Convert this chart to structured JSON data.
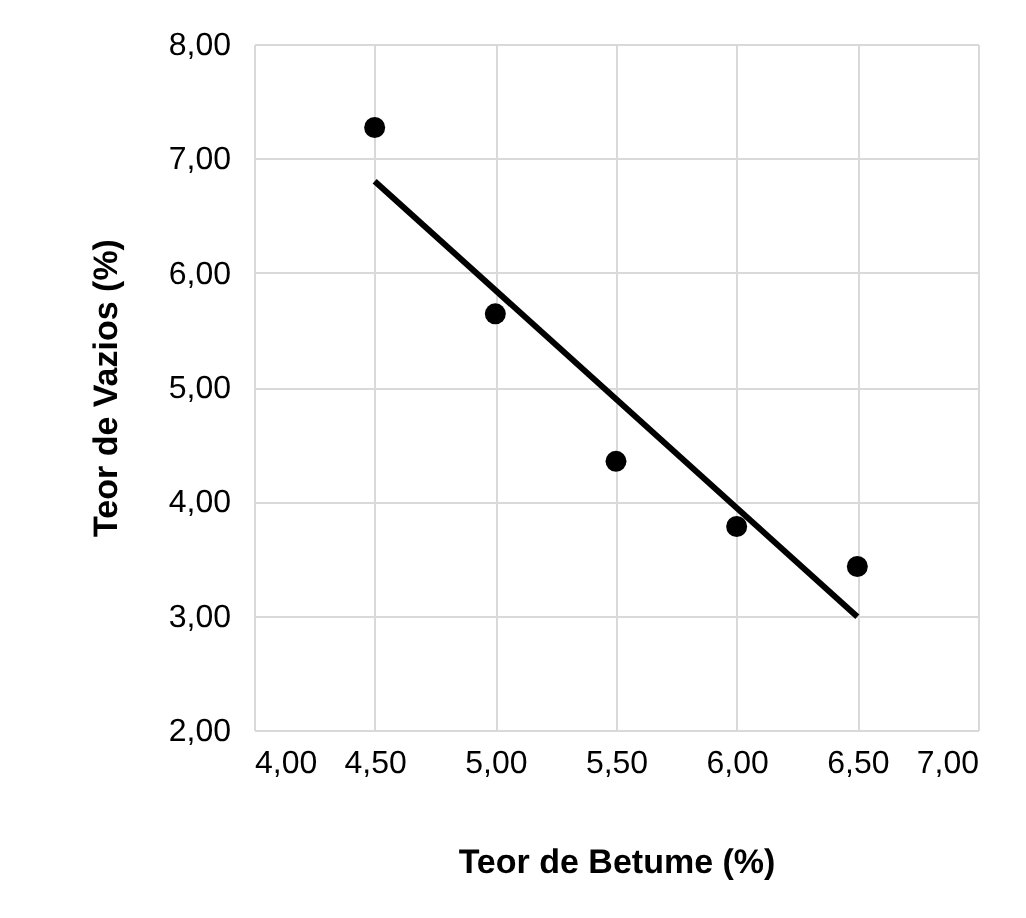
{
  "chart_data": {
    "type": "scatter",
    "xlabel": "Teor de Betume (%)",
    "ylabel": "Teor de Vazios (%)",
    "x": [
      4.5,
      5.0,
      5.5,
      6.0,
      6.5
    ],
    "series": [
      {
        "color": "#000000",
        "values": [
          7.27,
          5.64,
          4.35,
          3.78,
          3.43
        ]
      },
      {
        "type": "line",
        "color": "#000000",
        "marker": "none",
        "x": [
          4.5,
          6.5
        ],
        "values": [
          6.8,
          2.99
        ]
      }
    ],
    "xlim": [
      4,
      7
    ],
    "ylim": [
      2,
      8
    ],
    "xticks": [
      {
        "value": 4,
        "label": "4,00"
      },
      {
        "value": 4.5,
        "label": "4,50"
      },
      {
        "value": 5,
        "label": "5,00"
      },
      {
        "value": 5.5,
        "label": "5,50"
      },
      {
        "value": 6,
        "label": "6,00"
      },
      {
        "value": 6.5,
        "label": "6,50"
      },
      {
        "value": 7,
        "label": "7,00"
      }
    ],
    "yticks": [
      {
        "value": 2,
        "label": "2,00"
      },
      {
        "value": 3,
        "label": "3,00"
      },
      {
        "value": 4,
        "label": "4,00"
      },
      {
        "value": 5,
        "label": "5,00"
      },
      {
        "value": 6,
        "label": "6,00"
      },
      {
        "value": 7,
        "label": "7,00"
      },
      {
        "value": 8,
        "label": "8,00"
      }
    ],
    "grid": true,
    "marker": "circle"
  }
}
